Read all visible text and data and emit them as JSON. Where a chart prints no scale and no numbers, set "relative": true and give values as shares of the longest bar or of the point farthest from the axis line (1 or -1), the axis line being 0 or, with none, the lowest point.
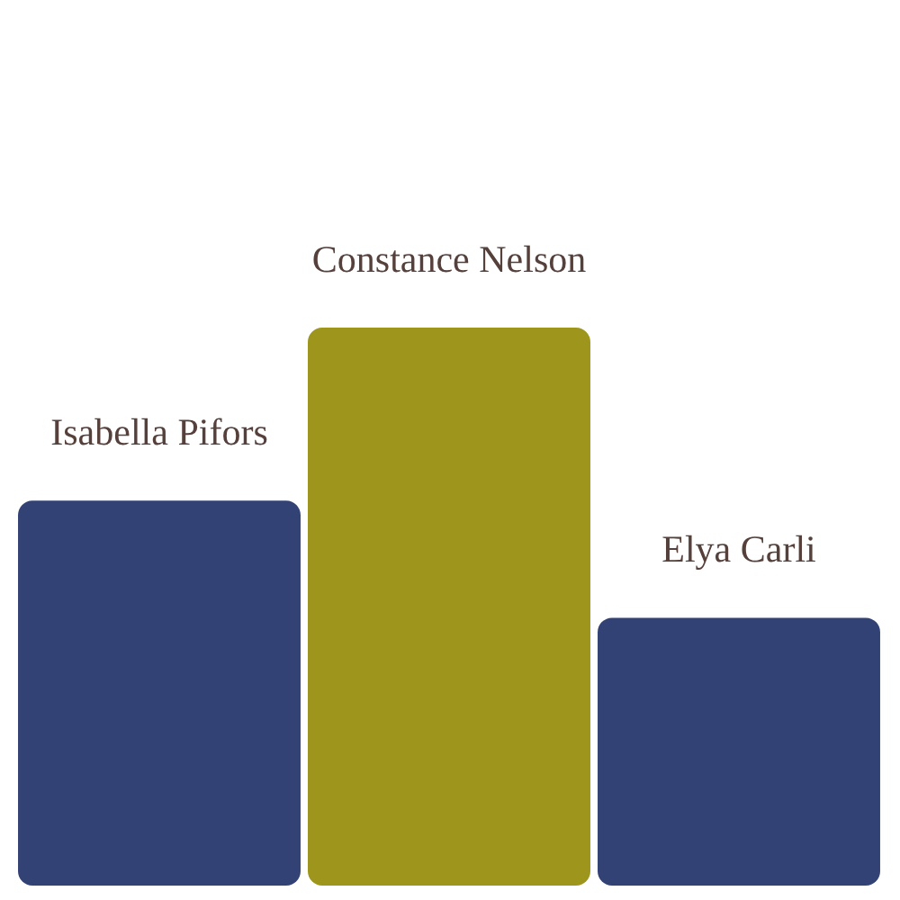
{
  "chart_data": {
    "type": "bar",
    "relative": true,
    "categories": [
      "Isabella Pifors",
      "Constance Nelson",
      "Elya Carli"
    ],
    "values": [
      0.69,
      1,
      0.48
    ],
    "colors": [
      "#334274",
      "#9e951d",
      "#334274"
    ],
    "legend": false
  }
}
